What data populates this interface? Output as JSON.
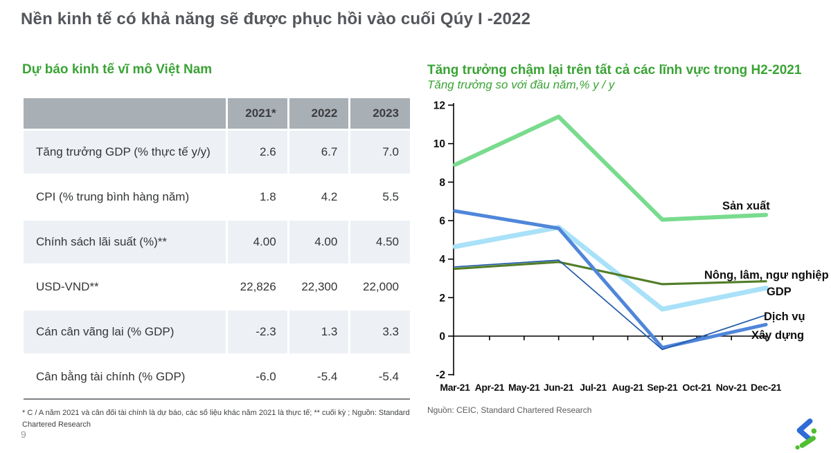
{
  "slide": {
    "title": "Nền kinh tế có khả năng sẽ được phục hồi vào cuối Qúy I -2022",
    "page_number": "9"
  },
  "table_section": {
    "heading": "Dự báo kinh tế vĩ mô Việt Nam",
    "columns": [
      "2021*",
      "2022",
      "2023"
    ],
    "rows": [
      {
        "label": "Tăng trưởng GDP (% thực tế y/y)",
        "values": [
          "2.6",
          "6.7",
          "7.0"
        ]
      },
      {
        "label": "CPI (% trung bình hàng năm)",
        "values": [
          "1.8",
          "4.2",
          "5.5"
        ]
      },
      {
        "label": "Chính sách lãi suất (%)**",
        "values": [
          "4.00",
          "4.00",
          "4.50"
        ]
      },
      {
        "label": "USD-VND**",
        "values": [
          "22,826",
          "22,300",
          "22,000"
        ]
      },
      {
        "label": "Cán cân vãng lai (% GDP)",
        "values": [
          "-2.3",
          "1.3",
          "3.3"
        ]
      },
      {
        "label": "Cân bằng tài chính (% GDP)",
        "values": [
          "-6.0",
          "-5.4",
          "-5.4"
        ]
      }
    ],
    "footnote": "* C / A năm 2021 và cân đối tài chính là dự báo, các số liệu khác năm 2021 là thực tế; ** cuối kỳ ; Nguồn: Standard Chartered Research"
  },
  "chart_section": {
    "heading": "Tăng trưởng chậm lại trên tất cả các lĩnh vực trong H2-2021",
    "subtitle": "Tăng trưởng so với đầu năm,% y / y",
    "source": "Nguồn: CEIC, Standard Chartered Research"
  },
  "chart_data": {
    "type": "line",
    "title": "Tăng trưởng chậm lại trên tất cả các lĩnh vực trong H2-2021",
    "subtitle": "Tăng trưởng so với đầu năm,% y / y",
    "x": [
      "Mar-21",
      "Jun-21",
      "Sep-21",
      "Dec-21"
    ],
    "x_axis_labels": [
      "Mar-21",
      "Apr-21",
      "May-21",
      "Jun-21",
      "Jul-21",
      "Aug-21",
      "Sep-21",
      "Oct-21",
      "Nov-21",
      "Dec-21"
    ],
    "y_ticks": [
      -2,
      0,
      2,
      4,
      6,
      8,
      10,
      12
    ],
    "ylim": [
      -2,
      12
    ],
    "grid": false,
    "legend_position": "line-end-labels",
    "series": [
      {
        "name": "GDP",
        "color": "#A9E1F8",
        "values": [
          4.65,
          5.65,
          1.4,
          2.5
        ]
      },
      {
        "name": "Sản xuất",
        "color": "#79DB8E",
        "values": [
          8.9,
          11.4,
          6.05,
          6.3
        ]
      },
      {
        "name": "Nông, lâm, ngư nghiệp",
        "color": "#527E29",
        "values": [
          3.5,
          3.85,
          2.7,
          2.85
        ]
      },
      {
        "name": "Xây dựng",
        "color": "#4F86D9",
        "values": [
          6.5,
          5.6,
          -0.6,
          0.6
        ]
      },
      {
        "name": "Dịch vụ",
        "color": "#2058A8",
        "values": [
          3.6,
          3.95,
          -0.7,
          1.1
        ]
      }
    ]
  },
  "logo": {
    "name": "Standard Chartered",
    "blue": "#2E6BD6",
    "green": "#4FBE30"
  }
}
